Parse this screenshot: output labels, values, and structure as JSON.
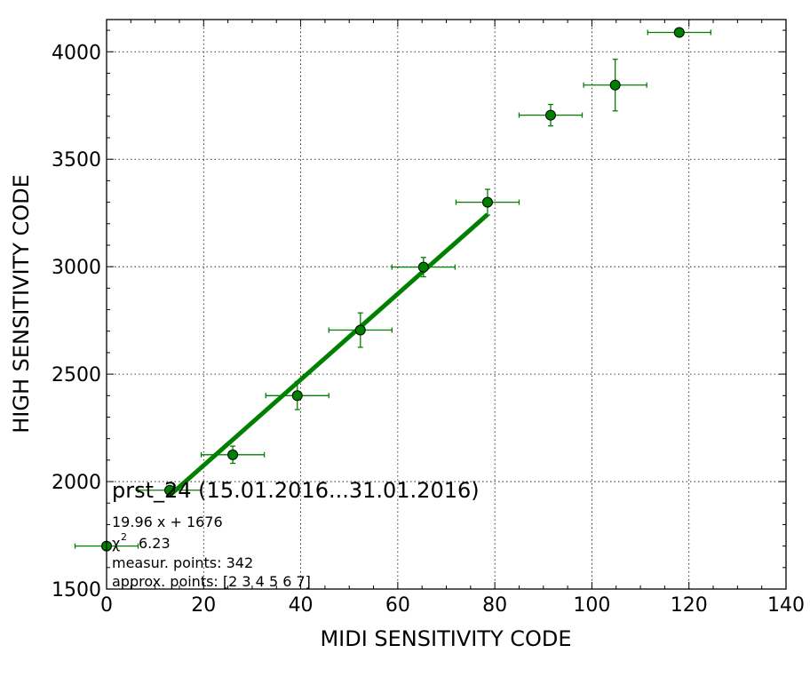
{
  "chart_data": {
    "type": "scatter",
    "xlabel": "MIDI SENSITIVITY CODE",
    "ylabel": "HIGH SENSITIVITY CODE",
    "xlim": [
      0,
      140
    ],
    "ylim": [
      1500,
      4150
    ],
    "x_ticks": [
      0,
      20,
      40,
      60,
      80,
      100,
      120,
      140
    ],
    "y_ticks": [
      1500,
      2000,
      2500,
      3000,
      3500,
      4000
    ],
    "grid": true,
    "point_color": "#008000",
    "line_color": "#008000",
    "series": [
      {
        "kind": "errorbar-points",
        "points": [
          {
            "x": 0,
            "y": 1700,
            "xerr": 6.5,
            "yerr": 0
          },
          {
            "x": 13,
            "y": 1960,
            "xerr": 6.5,
            "yerr": 0
          },
          {
            "x": 26,
            "y": 2125,
            "xerr": 6.5,
            "yerr": 40
          },
          {
            "x": 39.3,
            "y": 2400,
            "xerr": 6.5,
            "yerr": 65
          },
          {
            "x": 52.3,
            "y": 2705,
            "xerr": 6.5,
            "yerr": 80
          },
          {
            "x": 65.3,
            "y": 2998,
            "xerr": 6.5,
            "yerr": 45
          },
          {
            "x": 78.5,
            "y": 3300,
            "xerr": 6.5,
            "yerr": 60
          },
          {
            "x": 91.5,
            "y": 3705,
            "xerr": 6.5,
            "yerr": 50
          },
          {
            "x": 104.8,
            "y": 3845,
            "xerr": 6.5,
            "yerr": 120
          },
          {
            "x": 118,
            "y": 4090,
            "xerr": 6.5,
            "yerr": 0
          }
        ]
      },
      {
        "kind": "fit-line",
        "x_start": 13,
        "x_end": 78.5
      }
    ],
    "annotation": {
      "title": "prst_24 (15.01.2016...31.01.2016)",
      "equation": "19.96 x + 1676",
      "chi_symbol": "χ",
      "chi_sup": "2",
      "chi_value": "6.23",
      "measur": "measur. points: 342",
      "approx": "approx. points: [2 3 4 5 6 7]"
    }
  }
}
